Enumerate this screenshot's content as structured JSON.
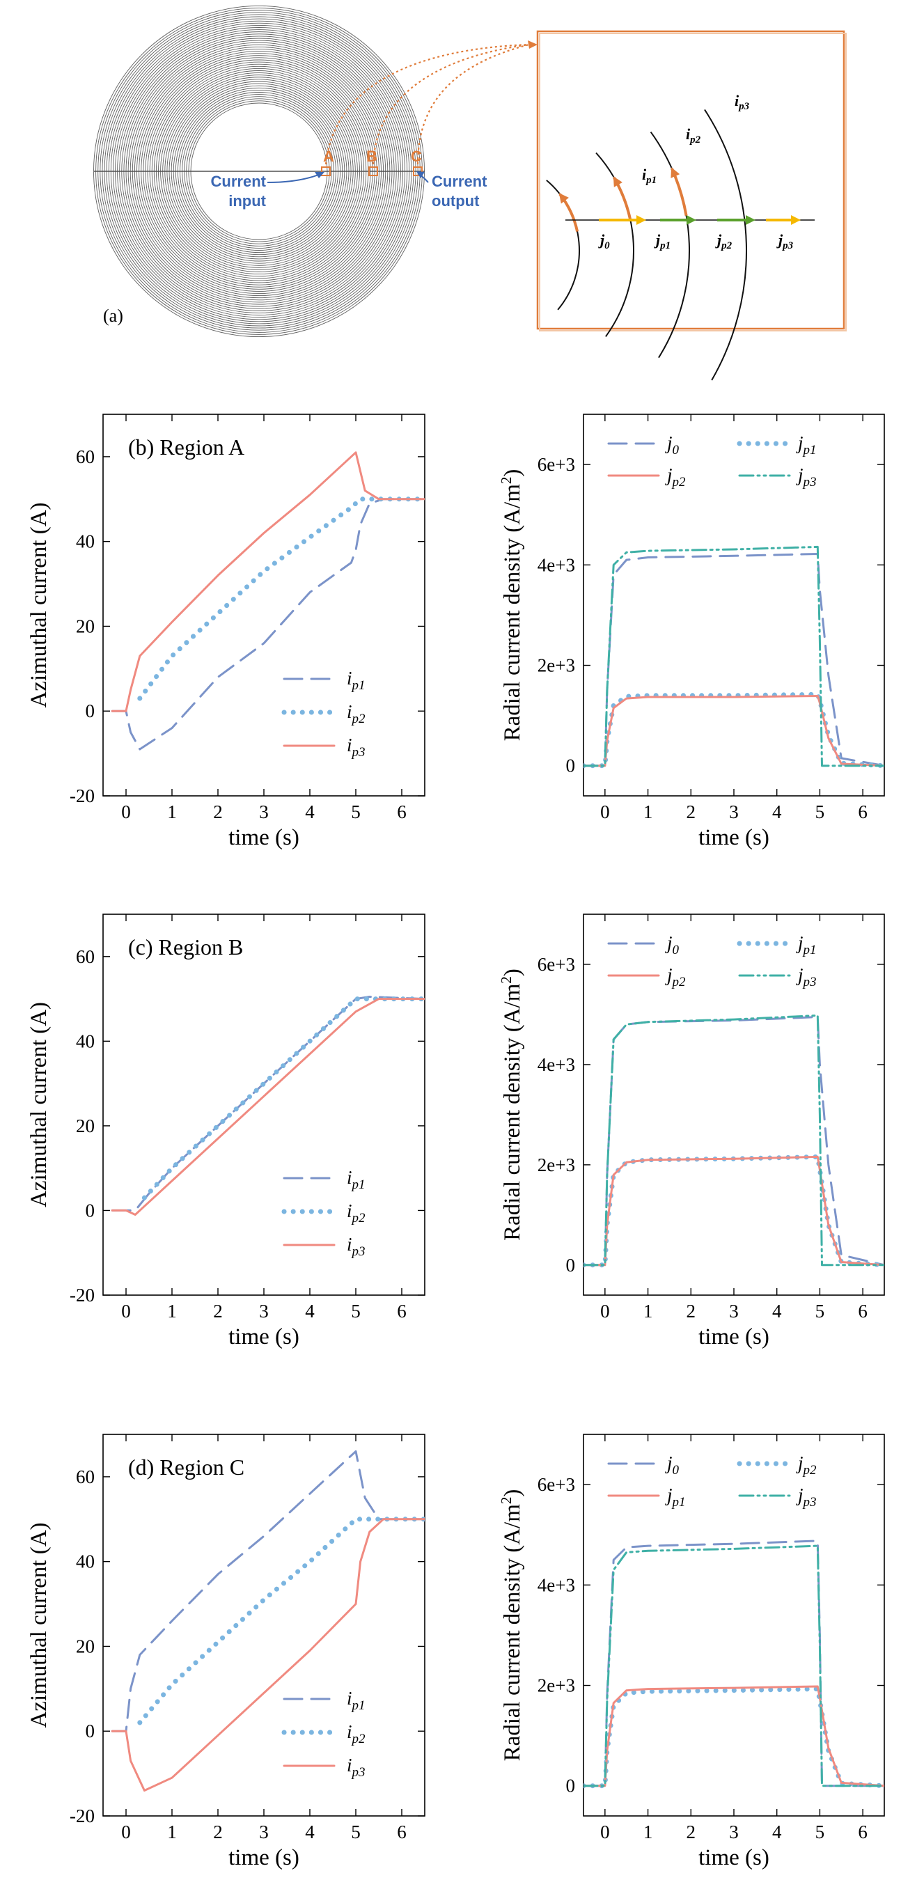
{
  "diagram": {
    "panel_label": "(a)",
    "points": [
      "A",
      "B",
      "C"
    ],
    "current_input": [
      "Current",
      "input"
    ],
    "current_output": [
      "Current",
      "output"
    ],
    "inset_labels": [
      {
        "base": "i",
        "sub": "p1"
      },
      {
        "base": "i",
        "sub": "p2"
      },
      {
        "base": "i",
        "sub": "p3"
      },
      {
        "base": "j",
        "sub": "0"
      },
      {
        "base": "j",
        "sub": "p1"
      },
      {
        "base": "j",
        "sub": "p2"
      },
      {
        "base": "j",
        "sub": "p3"
      }
    ],
    "colors": {
      "coil": "#606060",
      "orange": "#e07c3a",
      "blue": "#3b67b3",
      "yellow": "#f5b800",
      "green": "#5aa02c"
    }
  },
  "chart_data": [
    {
      "type": "line",
      "title": "(b) Region A",
      "xlabel": "time (s)",
      "ylabel": "Azimuthal current (A)",
      "xlim": [
        -0.5,
        6.5
      ],
      "ylim": [
        -20,
        70
      ],
      "xticks": [
        0,
        1,
        2,
        3,
        4,
        5,
        6
      ],
      "yticks": [
        -20,
        0,
        20,
        40,
        60
      ],
      "ytick_labels": [
        "-20",
        "0",
        "20",
        "40",
        "60"
      ],
      "legend": "lower-right",
      "series": [
        {
          "name": "i",
          "sub": "p1",
          "color": "#7b93c9",
          "dash": "long",
          "x": [
            -0.3,
            0,
            0.1,
            0.3,
            1,
            2,
            3,
            4,
            4.9,
            5.0,
            5.1,
            5.3,
            5.6,
            6.5
          ],
          "y": [
            0,
            0,
            -5,
            -9,
            -4,
            8,
            16,
            28,
            35,
            38,
            44,
            49,
            50,
            50
          ]
        },
        {
          "name": "i",
          "sub": "p2",
          "color": "#7bb5e0",
          "dash": "dot",
          "x": [
            0.3,
            1,
            2,
            3,
            4,
            4.9,
            5.1,
            5.5,
            6.5
          ],
          "y": [
            3,
            13,
            23,
            33,
            41,
            48,
            50,
            50,
            50
          ]
        },
        {
          "name": "i",
          "sub": "p3",
          "color": "#f08a80",
          "dash": "solid",
          "x": [
            -0.3,
            0,
            0.1,
            0.3,
            1,
            2,
            3,
            4,
            5.0,
            5.2,
            5.5,
            6.5
          ],
          "y": [
            0,
            0,
            5,
            13,
            21,
            32,
            42,
            51,
            61,
            52,
            50,
            50
          ]
        }
      ]
    },
    {
      "type": "line",
      "title": "",
      "xlabel": "time (s)",
      "ylabel": "Radial current density (A/m",
      "ylabel_sup": "2",
      "ylabel_end": ")",
      "xlim": [
        -0.5,
        6.5
      ],
      "ylim": [
        -600,
        7000
      ],
      "xticks": [
        0,
        1,
        2,
        3,
        4,
        5,
        6
      ],
      "yticks": [
        0,
        2000,
        4000,
        6000
      ],
      "ytick_labels": [
        "0",
        "2e+3",
        "4e+3",
        "6e+3"
      ],
      "legend": "top",
      "series": [
        {
          "name": "j",
          "sub": "0",
          "color": "#7b93c9",
          "dash": "long",
          "x": [
            -0.5,
            0,
            0.05,
            0.2,
            0.5,
            1,
            3,
            4.95,
            5.0,
            5.2,
            5.5,
            6.5
          ],
          "y": [
            0,
            0,
            1500,
            3800,
            4100,
            4150,
            4180,
            4220,
            3500,
            1800,
            150,
            0
          ]
        },
        {
          "name": "j",
          "sub": "p1",
          "color": "#7bb5e0",
          "dash": "dot",
          "x": [
            -0.5,
            0,
            0.05,
            0.2,
            0.5,
            1,
            3,
            4.95,
            5.0,
            5.2,
            5.5,
            6.5
          ],
          "y": [
            0,
            0,
            500,
            1200,
            1380,
            1400,
            1400,
            1420,
            1300,
            600,
            50,
            0
          ]
        },
        {
          "name": "j",
          "sub": "p2",
          "color": "#f08a80",
          "dash": "solid",
          "x": [
            -0.5,
            0,
            0.05,
            0.2,
            0.5,
            1,
            3,
            4.95,
            5.0,
            5.2,
            5.5,
            6.5
          ],
          "y": [
            0,
            0,
            500,
            1150,
            1340,
            1370,
            1370,
            1390,
            1250,
            550,
            40,
            0
          ]
        },
        {
          "name": "j",
          "sub": "p3",
          "color": "#3fb0a6",
          "dash": "dashdotdot",
          "x": [
            -0.5,
            0,
            0.05,
            0.2,
            0.5,
            1,
            3,
            4.95,
            5.0,
            5.05,
            5.5,
            6.5
          ],
          "y": [
            0,
            0,
            1500,
            4000,
            4250,
            4280,
            4310,
            4360,
            2500,
            0,
            0,
            0
          ]
        }
      ]
    },
    {
      "type": "line",
      "title": "(c) Region B",
      "xlabel": "time (s)",
      "ylabel": "Azimuthal current (A)",
      "xlim": [
        -0.5,
        6.5
      ],
      "ylim": [
        -20,
        70
      ],
      "xticks": [
        0,
        1,
        2,
        3,
        4,
        5,
        6
      ],
      "yticks": [
        -20,
        0,
        20,
        40,
        60
      ],
      "ytick_labels": [
        "-20",
        "0",
        "20",
        "40",
        "60"
      ],
      "legend": "lower-right",
      "series": [
        {
          "name": "i",
          "sub": "p1",
          "color": "#7b93c9",
          "dash": "long",
          "x": [
            -0.3,
            0,
            0.2,
            0.5,
            1,
            2,
            3,
            4,
            5.0,
            5.3,
            6.5
          ],
          "y": [
            0,
            0,
            0,
            4,
            10,
            20,
            30,
            40,
            50,
            50.5,
            50
          ]
        },
        {
          "name": "i",
          "sub": "p2",
          "color": "#7bb5e0",
          "dash": "dot",
          "x": [
            0.4,
            1,
            2,
            3,
            4,
            5.0,
            5.5,
            6.5
          ],
          "y": [
            3,
            10,
            20,
            30,
            40,
            50,
            50,
            50
          ]
        },
        {
          "name": "i",
          "sub": "p3",
          "color": "#f08a80",
          "dash": "solid",
          "x": [
            -0.3,
            0,
            0.2,
            0.5,
            1,
            2,
            3,
            4,
            5.0,
            5.5,
            6.5
          ],
          "y": [
            0,
            0,
            -1,
            2,
            7,
            17,
            27,
            37,
            47,
            50,
            50
          ]
        }
      ]
    },
    {
      "type": "line",
      "title": "",
      "xlabel": "time (s)",
      "ylabel": "Radial current density (A/m",
      "ylabel_sup": "2",
      "ylabel_end": ")",
      "xlim": [
        -0.5,
        6.5
      ],
      "ylim": [
        -600,
        7000
      ],
      "xticks": [
        0,
        1,
        2,
        3,
        4,
        5,
        6
      ],
      "yticks": [
        0,
        2000,
        4000,
        6000
      ],
      "ytick_labels": [
        "0",
        "2e+3",
        "4e+3",
        "6e+3"
      ],
      "legend": "top",
      "series": [
        {
          "name": "j",
          "sub": "0",
          "color": "#7b93c9",
          "dash": "long",
          "x": [
            -0.5,
            0,
            0.05,
            0.2,
            0.5,
            1,
            3,
            4.95,
            5.0,
            5.2,
            5.5,
            6.5
          ],
          "y": [
            0,
            0,
            1800,
            4500,
            4800,
            4850,
            4880,
            4950,
            4000,
            2000,
            200,
            0
          ]
        },
        {
          "name": "j",
          "sub": "p1",
          "color": "#7bb5e0",
          "dash": "dot",
          "x": [
            -0.5,
            0,
            0.05,
            0.2,
            0.5,
            1,
            3,
            4.95,
            5.0,
            5.2,
            5.5,
            6.5
          ],
          "y": [
            0,
            0,
            800,
            1800,
            2050,
            2100,
            2120,
            2160,
            1900,
            800,
            60,
            0
          ]
        },
        {
          "name": "j",
          "sub": "p2",
          "color": "#f08a80",
          "dash": "solid",
          "x": [
            -0.5,
            0,
            0.05,
            0.2,
            0.5,
            1,
            3,
            4.95,
            5.0,
            5.2,
            5.5,
            6.5
          ],
          "y": [
            0,
            0,
            800,
            1800,
            2050,
            2100,
            2120,
            2160,
            1900,
            800,
            60,
            0
          ]
        },
        {
          "name": "j",
          "sub": "p3",
          "color": "#3fb0a6",
          "dash": "dashdotdot",
          "x": [
            -0.5,
            0,
            0.05,
            0.2,
            0.5,
            1,
            3,
            4.95,
            5.0,
            5.05,
            5.5,
            6.5
          ],
          "y": [
            0,
            0,
            1800,
            4500,
            4800,
            4850,
            4900,
            4980,
            3000,
            0,
            0,
            0
          ]
        }
      ]
    },
    {
      "type": "line",
      "title": "(d) Region C",
      "xlabel": "time (s)",
      "ylabel": "Azimuthal current (A)",
      "xlim": [
        -0.5,
        6.5
      ],
      "ylim": [
        -20,
        70
      ],
      "xticks": [
        0,
        1,
        2,
        3,
        4,
        5,
        6
      ],
      "yticks": [
        -20,
        0,
        20,
        40,
        60
      ],
      "ytick_labels": [
        "-20",
        "0",
        "20",
        "40",
        "60"
      ],
      "legend": "lower-right",
      "series": [
        {
          "name": "i",
          "sub": "p1",
          "color": "#7b93c9",
          "dash": "long",
          "x": [
            -0.3,
            0,
            0.1,
            0.3,
            1,
            2,
            3,
            4,
            5.0,
            5.2,
            5.5,
            6.5
          ],
          "y": [
            0,
            0,
            10,
            18,
            26,
            37,
            46,
            56,
            66,
            55,
            50,
            50
          ]
        },
        {
          "name": "i",
          "sub": "p2",
          "color": "#7bb5e0",
          "dash": "dot",
          "x": [
            0.3,
            1,
            2,
            3,
            4,
            5.0,
            5.5,
            6.5
          ],
          "y": [
            2,
            11,
            21,
            31,
            40,
            50,
            50,
            50
          ]
        },
        {
          "name": "i",
          "sub": "p3",
          "color": "#f08a80",
          "dash": "solid",
          "x": [
            -0.3,
            0,
            0.1,
            0.4,
            1,
            2,
            3,
            4,
            5.0,
            5.1,
            5.3,
            5.6,
            6.5
          ],
          "y": [
            0,
            0,
            -7,
            -14,
            -11,
            -1,
            9,
            19,
            30,
            40,
            47,
            50,
            50
          ]
        }
      ]
    },
    {
      "type": "line",
      "title": "",
      "xlabel": "time (s)",
      "ylabel": "Radial current density (A/m",
      "ylabel_sup": "2",
      "ylabel_end": ")",
      "xlim": [
        -0.5,
        6.5
      ],
      "ylim": [
        -600,
        7000
      ],
      "xticks": [
        0,
        1,
        2,
        3,
        4,
        5,
        6
      ],
      "yticks": [
        0,
        2000,
        4000,
        6000
      ],
      "ytick_labels": [
        "0",
        "2e+3",
        "4e+3",
        "6e+3"
      ],
      "legend": "top",
      "series": [
        {
          "name": "j",
          "sub": "0",
          "color": "#7b93c9",
          "dash": "long",
          "x": [
            -0.5,
            0,
            0.05,
            0.2,
            0.5,
            1,
            3,
            4.95,
            5.0,
            5.05,
            5.5,
            6.5
          ],
          "y": [
            0,
            0,
            1800,
            4500,
            4750,
            4780,
            4820,
            4880,
            3000,
            0,
            0,
            0
          ]
        },
        {
          "name": "j",
          "sub": "p2",
          "color": "#7bb5e0",
          "dash": "dot",
          "x": [
            -0.5,
            0,
            0.05,
            0.2,
            0.5,
            1,
            3,
            4.95,
            5.0,
            5.2,
            5.5,
            6.5
          ],
          "y": [
            0,
            0,
            700,
            1600,
            1850,
            1880,
            1900,
            1930,
            1700,
            700,
            50,
            0
          ]
        },
        {
          "name": "j",
          "sub": "p1",
          "color": "#f08a80",
          "dash": "solid",
          "x": [
            -0.5,
            0,
            0.05,
            0.2,
            0.5,
            1,
            3,
            4.95,
            5.0,
            5.2,
            5.5,
            6.5
          ],
          "y": [
            0,
            0,
            700,
            1650,
            1900,
            1930,
            1950,
            1980,
            1750,
            750,
            60,
            0
          ]
        },
        {
          "name": "j",
          "sub": "p3",
          "color": "#3fb0a6",
          "dash": "dashdotdot",
          "x": [
            -0.5,
            0,
            0.05,
            0.2,
            0.5,
            1,
            3,
            4.95,
            5.0,
            5.05,
            5.5,
            6.5
          ],
          "y": [
            0,
            0,
            1700,
            4300,
            4650,
            4680,
            4720,
            4780,
            2800,
            0,
            0,
            0
          ]
        }
      ]
    }
  ]
}
